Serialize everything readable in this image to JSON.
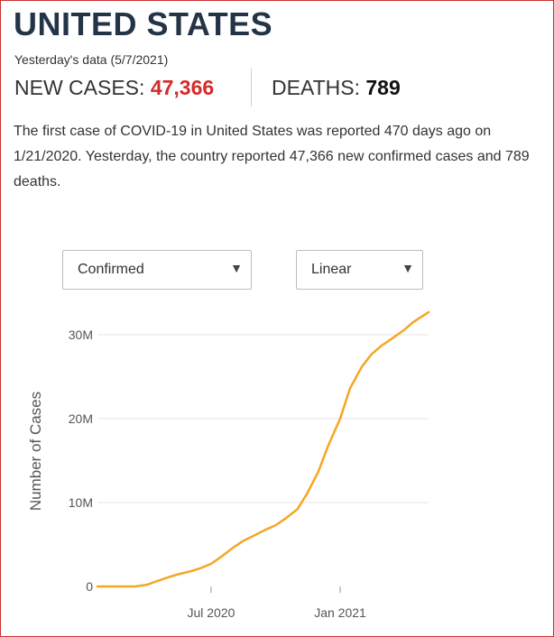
{
  "header": {
    "title": "UNITED STATES",
    "yesterday_label": "Yesterday's data (5/7/2021)"
  },
  "stats": {
    "cases_label": "NEW CASES: ",
    "cases_value": "47,366",
    "deaths_label": "DEATHS: ",
    "deaths_value": "789"
  },
  "summary": {
    "text_part1": "The first case of COVID-19 in United States was reported 470 days ago on 1/21/2020. Yesterday, the country reported 47,366 new confirmed cases and 789 deaths."
  },
  "controls": {
    "measure_select": {
      "value": "Confirmed"
    },
    "scale_select": {
      "value": "Linear"
    }
  },
  "colors": {
    "line": "#f5a623",
    "cases": "#d42a2a",
    "title": "#243447",
    "grid": "#e6e6e6"
  },
  "chart_data": {
    "type": "line",
    "ylabel": "Number of Cases",
    "xlabel": "",
    "y_ticks": [
      {
        "value": 0,
        "label": "0"
      },
      {
        "value": 10000000,
        "label": "10M"
      },
      {
        "value": 20000000,
        "label": "20M"
      },
      {
        "value": 30000000,
        "label": "30M"
      }
    ],
    "x_ticks": [
      {
        "value": "2020-07-01",
        "label": "Jul 2020"
      },
      {
        "value": "2021-01-01",
        "label": "Jan 2021"
      }
    ],
    "ylim": [
      0,
      31000000
    ],
    "xlim": [
      "2020-01-21",
      "2021-05-07"
    ],
    "grid": true,
    "series": [
      {
        "x": [
          "2020-01-21",
          "2020-02-15",
          "2020-03-15",
          "2020-04-01",
          "2020-04-15",
          "2020-05-01",
          "2020-05-15",
          "2020-06-01",
          "2020-06-15",
          "2020-07-01",
          "2020-07-15",
          "2020-08-01",
          "2020-08-15",
          "2020-09-01",
          "2020-09-15",
          "2020-10-01",
          "2020-10-15",
          "2020-11-01",
          "2020-11-15",
          "2020-12-01",
          "2020-12-15",
          "2021-01-01",
          "2021-01-15",
          "2021-02-01",
          "2021-02-15",
          "2021-03-01",
          "2021-03-15",
          "2021-04-01",
          "2021-04-15",
          "2021-05-07"
        ],
        "values": [
          0,
          15,
          3500,
          220000,
          640000,
          1100000,
          1450000,
          1800000,
          2150000,
          2700000,
          3500000,
          4600000,
          5400000,
          6100000,
          6700000,
          7300000,
          8100000,
          9200000,
          11100000,
          13700000,
          16800000,
          20000000,
          23600000,
          26200000,
          27700000,
          28700000,
          29500000,
          30500000,
          31500000,
          32700000
        ]
      }
    ]
  }
}
